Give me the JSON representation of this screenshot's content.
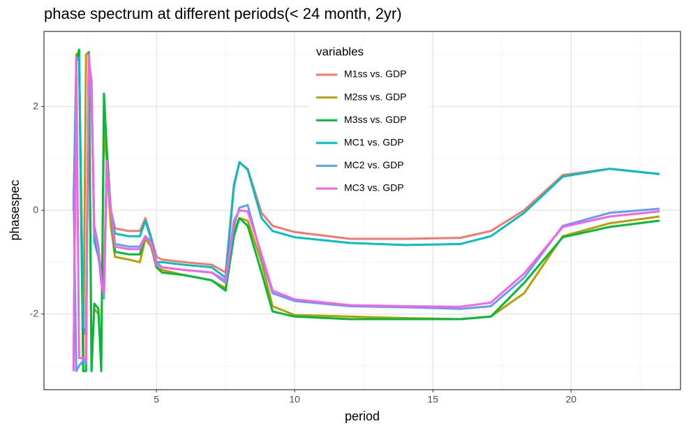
{
  "chart_data": {
    "type": "line",
    "title": "phase spectrum at different periods(< 24 month, 2yr)",
    "x_label": "period",
    "y_label": "phasespec",
    "legend_title": "variables",
    "legend_position": "top",
    "grid": true,
    "xlim": [
      0.93,
      23.96
    ],
    "xticks": [
      5,
      10,
      15,
      20
    ],
    "xminor": [
      2.5,
      7.5,
      12.5,
      17.5,
      22.5
    ],
    "ylim": [
      -3.46,
      3.45
    ],
    "yticks": [
      -2,
      0,
      2
    ],
    "yminor": [
      -3,
      -1,
      1,
      3
    ],
    "x": [
      2.0,
      2.1,
      2.2,
      2.35,
      2.45,
      2.55,
      2.65,
      2.75,
      2.9,
      3.0,
      3.1,
      3.2,
      3.35,
      3.5,
      4.0,
      4.4,
      4.6,
      4.8,
      5.0,
      5.2,
      6.0,
      7.0,
      7.5,
      7.8,
      8.0,
      8.3,
      8.8,
      9.2,
      10,
      12,
      14,
      16,
      17.1,
      18.3,
      19.7,
      21.4,
      23.2
    ],
    "series": [
      {
        "name": "M1ss vs. GDP",
        "color": "#F8766D",
        "values": [
          0,
          2.9,
          2.9,
          -2.3,
          -2.4,
          2.9,
          2.5,
          -0.5,
          -0.8,
          -1.2,
          -1.5,
          0.9,
          0.0,
          -0.35,
          -0.4,
          -0.4,
          -0.15,
          -0.5,
          -0.9,
          -0.95,
          -1.0,
          -1.05,
          -1.2,
          0.5,
          0.92,
          0.8,
          -0.05,
          -0.3,
          -0.42,
          -0.55,
          -0.55,
          -0.53,
          -0.4,
          0.0,
          0.68,
          0.8,
          0.7
        ]
      },
      {
        "name": "M2ss vs. GDP",
        "color": "#B79F00",
        "values": [
          -3.1,
          3.0,
          3.05,
          -3.1,
          3.0,
          3.05,
          -3.0,
          -1.9,
          -2.0,
          -2.9,
          1.6,
          0.9,
          -0.3,
          -0.9,
          -0.95,
          -1.0,
          -0.55,
          -0.7,
          -1.1,
          -1.15,
          -1.25,
          -1.35,
          -1.5,
          -0.4,
          -0.15,
          -0.2,
          -1.0,
          -1.85,
          -2.02,
          -2.05,
          -2.08,
          -2.1,
          -2.05,
          -1.6,
          -0.5,
          -0.25,
          -0.12
        ]
      },
      {
        "name": "M3ss vs. GDP",
        "color": "#00BA38",
        "values": [
          -3.1,
          2.9,
          3.1,
          -3.1,
          -3.1,
          3.05,
          -3.1,
          -1.8,
          -1.9,
          -3.1,
          2.25,
          1.2,
          0.0,
          -0.8,
          -0.85,
          -0.85,
          -0.5,
          -0.65,
          -1.1,
          -1.2,
          -1.25,
          -1.35,
          -1.55,
          -0.5,
          -0.15,
          -0.3,
          -1.2,
          -1.95,
          -2.05,
          -2.1,
          -2.1,
          -2.1,
          -2.05,
          -1.4,
          -0.52,
          -0.32,
          -0.2
        ]
      },
      {
        "name": "MC1 vs. GDP",
        "color": "#00BFC4",
        "values": [
          0,
          2.9,
          2.95,
          -2.25,
          -2.4,
          2.95,
          2.4,
          -0.6,
          -0.9,
          -1.3,
          -1.6,
          0.85,
          0.0,
          -0.45,
          -0.5,
          -0.5,
          -0.2,
          -0.55,
          -1.0,
          -1.0,
          -1.05,
          -1.1,
          -1.3,
          0.45,
          0.93,
          0.78,
          -0.15,
          -0.4,
          -0.52,
          -0.63,
          -0.67,
          -0.65,
          -0.5,
          -0.05,
          0.65,
          0.8,
          0.7
        ]
      },
      {
        "name": "MC2 vs. GDP",
        "color": "#619CFF",
        "values": [
          0.4,
          -3.1,
          -3.0,
          -2.9,
          -2.95,
          2.8,
          2.0,
          -0.3,
          -0.7,
          -1.3,
          -1.7,
          0.7,
          0.0,
          -0.65,
          -0.7,
          -0.7,
          -0.5,
          -0.6,
          -1.0,
          -1.1,
          -1.15,
          -1.2,
          -1.4,
          -0.3,
          0.05,
          0.1,
          -0.9,
          -1.6,
          -1.75,
          -1.85,
          -1.87,
          -1.9,
          -1.85,
          -1.3,
          -0.3,
          -0.05,
          0.03
        ]
      },
      {
        "name": "MC3 vs. GDP",
        "color": "#F564E3",
        "values": [
          -3.1,
          2.95,
          -2.85,
          -2.85,
          -2.9,
          3.0,
          2.3,
          -0.4,
          -0.8,
          -1.4,
          -1.6,
          0.95,
          0.0,
          -0.7,
          -0.75,
          -0.75,
          -0.5,
          -0.65,
          -1.05,
          -1.1,
          -1.15,
          -1.2,
          -1.35,
          -0.2,
          0.0,
          -0.02,
          -0.85,
          -1.55,
          -1.72,
          -1.83,
          -1.85,
          -1.86,
          -1.78,
          -1.22,
          -0.32,
          -0.12,
          -0.02
        ]
      }
    ]
  }
}
